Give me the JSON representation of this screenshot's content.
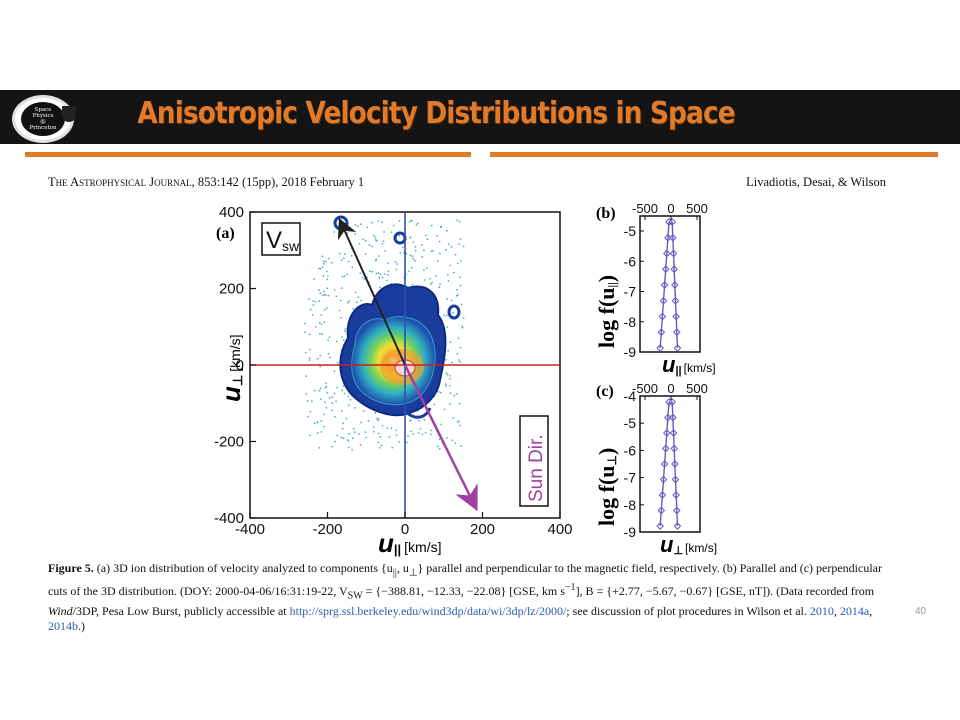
{
  "header": {
    "logo_text": [
      "Space",
      "Physics",
      "@",
      "Princeton"
    ],
    "title": "Anisotropic Velocity Distributions in Space"
  },
  "citation": {
    "journal": "The Astrophysical Journal",
    "details": ", 853:142 (15pp), 2018 February 1",
    "authors": "Livadiotis, Desai, & Wilson"
  },
  "figure": {
    "panel_a": {
      "label": "(a)",
      "vsw_label": "V",
      "vsw_sub": "sw",
      "sun_label": "Sun Dir.",
      "xlabel": "u",
      "xlabel_sub": "||",
      "xunit": "[km/s]",
      "ylabel": "u",
      "ylabel_sub": "⊥",
      "yunit": "[km/s]",
      "xticks": [
        "-400",
        "-200",
        "0",
        "200",
        "400"
      ],
      "yticks": [
        "400",
        "200",
        "0",
        "-200",
        "-400"
      ]
    },
    "panel_b": {
      "label": "(b)",
      "top_ticks": [
        "-500",
        "0",
        "500"
      ],
      "yticks": [
        "-5",
        "-6",
        "-7",
        "-8",
        "-9"
      ],
      "ylabel": "log f(u",
      "ylabel_sub": "||",
      "xlabel": "u",
      "xlabel_sub": "||",
      "xunit": "[km/s]"
    },
    "panel_c": {
      "label": "(c)",
      "top_ticks": [
        "-500",
        "0",
        "500"
      ],
      "yticks": [
        "-4",
        "-5",
        "-6",
        "-7",
        "-8",
        "-9"
      ],
      "ylabel": "log f(u",
      "ylabel_sub": "⊥",
      "xlabel": "u",
      "xlabel_sub": "⊥",
      "xunit": "[km/s]"
    },
    "colors": {
      "accent": "#e07b2b",
      "red_axis": "#cc2020",
      "blue_axis": "#3050b0",
      "arrow_vsw": "#222222",
      "arrow_sun": "#a040a0",
      "cut_line": "#6a58c0"
    }
  },
  "caption": {
    "fig_label": "Figure 5.",
    "text1": " (a) 3D ion distribution of velocity analyzed to components {u",
    "text2": "||",
    "text3": ", u",
    "text4": "⊥",
    "text5": "} parallel and perpendicular to the magnetic field, respectively. (b) Parallel and (c) perpendicular cuts of the 3D distribution. (DOY: 2000-04-06/16:31:19-22, V",
    "text6": "SW",
    "text7": " = {−388.81, −12.33, −22.08} [GSE, km s",
    "text8": "−1",
    "text9": "], B = {+2.77, −5.67, −0.67} [GSE, nT]). (Data recorded from ",
    "text10": "Wind",
    "text11": "/3DP, Pesa Low Burst, publicly accessible at ",
    "url": "http://sprg.ssl.berkeley.edu/wind3dp/data/wi/3dp/lz/2000/",
    "text12": "; see discussion of plot procedures in Wilson et al. ",
    "ref1": "2010",
    "ref2": "2014a",
    "ref3": "2014b",
    "text13": ".)"
  },
  "slide_number": "40"
}
